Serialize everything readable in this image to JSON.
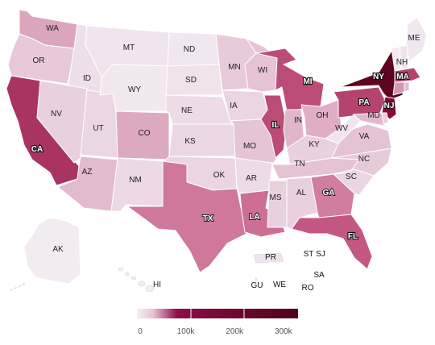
{
  "map": {
    "states": [
      {
        "code": "WA",
        "label": "WA",
        "value": 45000
      },
      {
        "code": "OR",
        "label": "OR",
        "value": 15000
      },
      {
        "code": "CA",
        "label": "CA",
        "value": 170000
      },
      {
        "code": "ID",
        "label": "ID",
        "value": 5000
      },
      {
        "code": "NV",
        "label": "NV",
        "value": 12000
      },
      {
        "code": "UT",
        "label": "UT",
        "value": 9000
      },
      {
        "code": "AZ",
        "label": "AZ",
        "value": 22000
      },
      {
        "code": "MT",
        "label": "MT",
        "value": 3000
      },
      {
        "code": "WY",
        "label": "WY",
        "value": 1500
      },
      {
        "code": "CO",
        "label": "CO",
        "value": 40000
      },
      {
        "code": "NM",
        "label": "NM",
        "value": 8000
      },
      {
        "code": "ND",
        "label": "ND",
        "value": 2000
      },
      {
        "code": "SD",
        "label": "SD",
        "value": 4000
      },
      {
        "code": "NE",
        "label": "NE",
        "value": 7000
      },
      {
        "code": "KS",
        "label": "KS",
        "value": 9000
      },
      {
        "code": "OK",
        "label": "OK",
        "value": 10000
      },
      {
        "code": "TX",
        "label": "TX",
        "value": 90000
      },
      {
        "code": "MN",
        "label": "MN",
        "value": 14000
      },
      {
        "code": "IA",
        "label": "IA",
        "value": 10000
      },
      {
        "code": "MO",
        "label": "MO",
        "value": 17000
      },
      {
        "code": "AR",
        "label": "AR",
        "value": 7000
      },
      {
        "code": "LA",
        "label": "LA",
        "value": 100000
      },
      {
        "code": "WI",
        "label": "WI",
        "value": 18000
      },
      {
        "code": "IL",
        "label": "IL",
        "value": 140000
      },
      {
        "code": "MI",
        "label": "MI",
        "value": 140000
      },
      {
        "code": "IN",
        "label": "IN",
        "value": 28000
      },
      {
        "code": "OH",
        "label": "OH",
        "value": 35000
      },
      {
        "code": "KY",
        "label": "KY",
        "value": 12000
      },
      {
        "code": "TN",
        "label": "TN",
        "value": 18000
      },
      {
        "code": "MS",
        "label": "MS",
        "value": 12000
      },
      {
        "code": "AL",
        "label": "AL",
        "value": 12000
      },
      {
        "code": "GA",
        "label": "GA",
        "value": 85000
      },
      {
        "code": "FL",
        "label": "FL",
        "value": 125000
      },
      {
        "code": "SC",
        "label": "SC",
        "value": 10000
      },
      {
        "code": "NC",
        "label": "NC",
        "value": 14000
      },
      {
        "code": "VA",
        "label": "VA",
        "value": 18000
      },
      {
        "code": "WV",
        "label": "WV",
        "value": 3000
      },
      {
        "code": "PA",
        "label": "PA",
        "value": 150000
      },
      {
        "code": "NY",
        "label": "NY",
        "value": 330000
      },
      {
        "code": "NJ",
        "label": "NJ",
        "value": 230000
      },
      {
        "code": "MD",
        "label": "MD",
        "value": 25000
      },
      {
        "code": "ME",
        "label": "ME",
        "value": 2000
      },
      {
        "code": "NH",
        "label": "NH",
        "value": 3000
      },
      {
        "code": "VT",
        "label": "",
        "value": 1500
      },
      {
        "code": "MA",
        "label": "MA",
        "value": 150000
      },
      {
        "code": "CT",
        "label": "",
        "value": 60000
      },
      {
        "code": "RI",
        "label": "",
        "value": 20000
      },
      {
        "code": "DE",
        "label": "",
        "value": 12000
      },
      {
        "code": "AK",
        "label": "AK",
        "value": 500
      },
      {
        "code": "HI",
        "label": "HI",
        "value": 500
      }
    ],
    "territories": [
      {
        "code": "PR",
        "label": "PR",
        "value": 3000
      },
      {
        "code": "ST",
        "label": "ST",
        "value": 0
      },
      {
        "code": "SJ",
        "label": "SJ",
        "value": 0
      },
      {
        "code": "SA",
        "label": "SA",
        "value": 0
      },
      {
        "code": "GU",
        "label": "GU",
        "value": 300
      },
      {
        "code": "WE",
        "label": "WE",
        "value": 0
      },
      {
        "code": "RO",
        "label": "RO",
        "value": 0
      }
    ],
    "colors": {
      "min": "#f2ecf3",
      "low": "#e3bdd0",
      "mid": "#c75b86",
      "high": "#8b0a3d",
      "max": "#5e0320"
    }
  },
  "legend": {
    "ticks": [
      {
        "label": "0",
        "value": 0
      },
      {
        "label": "100k",
        "value": 100000
      },
      {
        "label": "200k",
        "value": 200000
      },
      {
        "label": "300k",
        "value": 300000
      }
    ],
    "max": 330000
  }
}
